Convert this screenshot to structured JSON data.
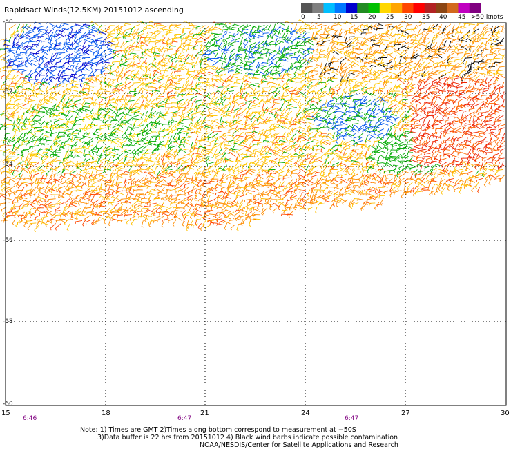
{
  "title": "Rapidsact Winds(12.5KM) 20151012 ascending",
  "legend": {
    "colors": [
      "#555555",
      "#7f7f7f",
      "#00bfff",
      "#0077ff",
      "#0000cd",
      "#228b22",
      "#00c000",
      "#ffd700",
      "#ffa500",
      "#ff4500",
      "#ff0000",
      "#b22222",
      "#8b4513",
      "#d2691e",
      "#c000c0",
      "#800080"
    ],
    "labels": [
      "0",
      "5",
      "10",
      "15",
      "20",
      "25",
      "30",
      "35",
      "40",
      "45",
      ">50 knots"
    ]
  },
  "axes": {
    "lon_labels": [
      "15",
      "18",
      "21",
      "24",
      "27",
      "30"
    ],
    "lat_labels": [
      "-50",
      "-52",
      "-54",
      "-56",
      "-58",
      "-60"
    ],
    "time_labels": [
      "6:46",
      "6:47",
      "6:47"
    ]
  },
  "notes": {
    "line1": "Note: 1) Times are GMT 2)Times along bottom correspond to measurement at −50S",
    "line2": "3)Data buffer is 22 hrs from 20151012 4) Black wind barbs indicate possible contamination",
    "line3": "NOAA/NESDIS/Center for Satellite Applications and Research"
  }
}
